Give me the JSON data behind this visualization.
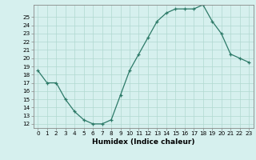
{
  "x": [
    0,
    1,
    2,
    3,
    4,
    5,
    6,
    7,
    8,
    9,
    10,
    11,
    12,
    13,
    14,
    15,
    16,
    17,
    18,
    19,
    20,
    21,
    22,
    23
  ],
  "y": [
    18.5,
    17.0,
    17.0,
    15.0,
    13.5,
    12.5,
    12.0,
    12.0,
    12.5,
    15.5,
    18.5,
    20.5,
    22.5,
    24.5,
    25.5,
    26.0,
    26.0,
    26.0,
    26.5,
    24.5,
    23.0,
    20.5,
    20.0,
    19.5
  ],
  "xlabel": "Humidex (Indice chaleur)",
  "xlim": [
    -0.5,
    23.5
  ],
  "ylim": [
    11.5,
    26.5
  ],
  "yticks": [
    12,
    13,
    14,
    15,
    16,
    17,
    18,
    19,
    20,
    21,
    22,
    23,
    24,
    25
  ],
  "xticks": [
    0,
    1,
    2,
    3,
    4,
    5,
    6,
    7,
    8,
    9,
    10,
    11,
    12,
    13,
    14,
    15,
    16,
    17,
    18,
    19,
    20,
    21,
    22,
    23
  ],
  "line_color": "#2d7a68",
  "marker": "+",
  "bg_color": "#d6f0ee",
  "grid_color": "#b0d8d0",
  "axis_bg": "#d6f0ee",
  "spine_color": "#888888",
  "xlabel_fontsize": 6.5,
  "tick_fontsize": 5.2
}
